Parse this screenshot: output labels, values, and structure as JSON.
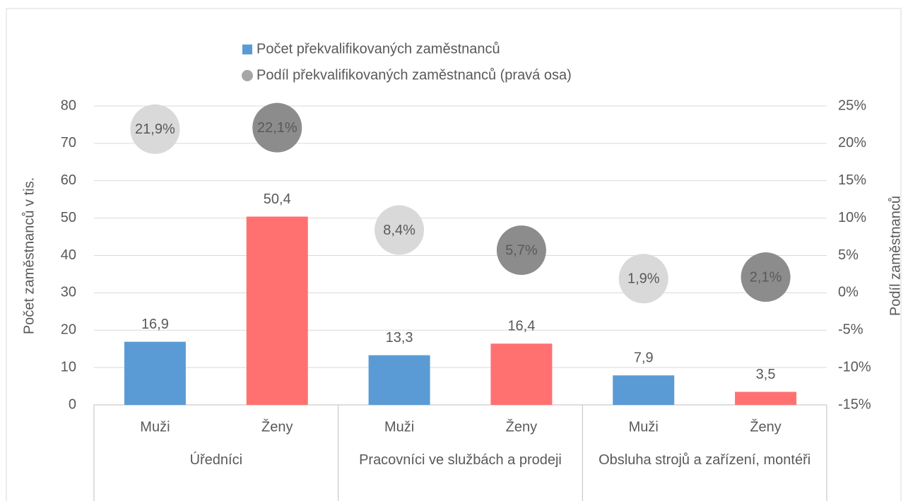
{
  "chart_data": {
    "type": "bar",
    "y_label": "Počet zaměstnanců v tis.",
    "y2_label": "Podíl zaměstnanců",
    "categories": [
      "Muži",
      "Ženy",
      "Muži",
      "Ženy",
      "Muži",
      "Ženy"
    ],
    "groups": [
      "Úředníci",
      "Pracovníci ve službách a prodeji",
      "Obsluha strojů a zařízení, montéři"
    ],
    "ylim": [
      0,
      80
    ],
    "yticks": [
      0,
      10,
      20,
      30,
      40,
      50,
      60,
      70,
      80
    ],
    "y2lim": [
      -15,
      25
    ],
    "y2ticks": [
      {
        "value": -15,
        "label": "-15%"
      },
      {
        "value": -10,
        "label": "-10%"
      },
      {
        "value": -5,
        "label": "-5%"
      },
      {
        "value": 0,
        "label": "0%"
      },
      {
        "value": 5,
        "label": "5%"
      },
      {
        "value": 10,
        "label": "10%"
      },
      {
        "value": 15,
        "label": "15%"
      },
      {
        "value": 20,
        "label": "20%"
      },
      {
        "value": 25,
        "label": "25%"
      }
    ],
    "grid": true,
    "legend": "top",
    "series": [
      {
        "name": "Počet překvalifikovaných zaměstnanců",
        "type": "bar",
        "color": "#5b9bd5",
        "colors": [
          "#5b9bd5",
          "#ff7171",
          "#5b9bd5",
          "#ff7171",
          "#5b9bd5",
          "#ff7171"
        ],
        "values": [
          16.9,
          50.4,
          13.3,
          16.4,
          7.9,
          3.5
        ],
        "value_labels": [
          "16,9",
          "50,4",
          "13,3",
          "16,4",
          "7,9",
          "3,5"
        ]
      },
      {
        "name": "Podíl překvalifikovaných zaměstnanců (pravá osa)",
        "type": "scatter",
        "axis": "y2",
        "color": "#a6a6a6",
        "colors": [
          "#d9d9d9",
          "#8c8c8c",
          "#d9d9d9",
          "#8c8c8c",
          "#d9d9d9",
          "#8c8c8c"
        ],
        "values": [
          21.9,
          22.1,
          8.4,
          5.7,
          1.9,
          2.1
        ],
        "value_labels": [
          "21,9%",
          "22,1%",
          "8,4%",
          "5,7%",
          "1,9%",
          "2,1%"
        ]
      }
    ]
  }
}
